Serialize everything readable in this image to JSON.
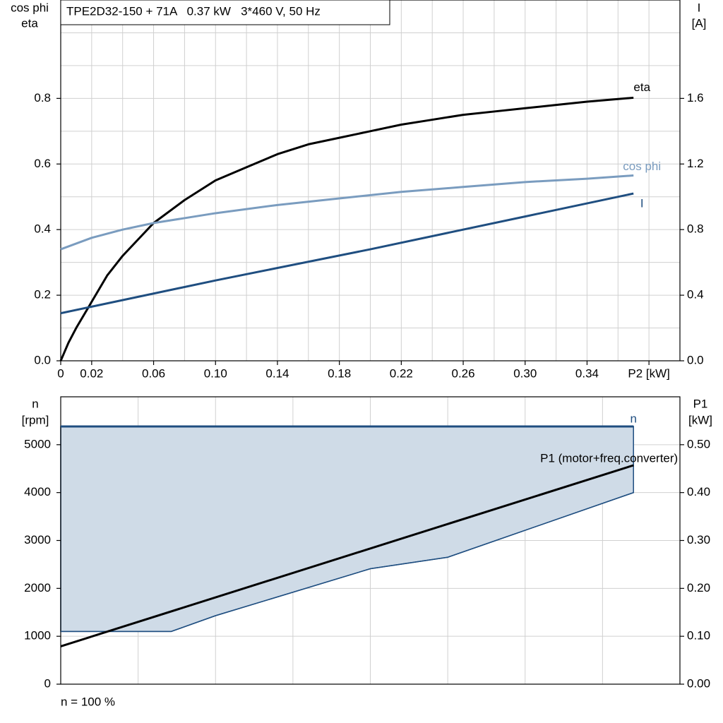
{
  "chart_data": [
    {
      "type": "line",
      "title": "TPE2D32-150 + 71A   0.37 kW   3*460 V, 50 Hz",
      "ylabel": [
        "cos phi",
        "eta"
      ],
      "y2label": [
        "I",
        "[A]"
      ],
      "xlim": [
        0,
        0.4
      ],
      "xticks": [
        0,
        0.02,
        0.06,
        {
          "value": 0.1,
          "label": "0.10"
        },
        0.14,
        0.18,
        0.22,
        0.26,
        {
          "value": 0.3,
          "label": "0.30"
        },
        0.34,
        {
          "value": 0.38,
          "label": "P2 [kW]"
        }
      ],
      "xgrid": [
        0.02,
        0.04,
        0.06,
        0.08,
        0.1,
        0.12,
        0.14,
        0.16,
        0.18,
        0.2,
        0.22,
        0.24,
        0.26,
        0.28,
        0.3,
        0.32,
        0.34,
        0.36,
        0.38
      ],
      "ylim": [
        0,
        1.1
      ],
      "yticks": [
        {
          "value": 0,
          "label": "0.0"
        },
        0.2,
        0.4,
        0.6,
        0.8
      ],
      "ygrid": [
        0.1,
        0.2,
        0.3,
        0.4,
        0.5,
        0.6,
        0.7,
        0.8,
        0.9,
        1.0
      ],
      "y2lim": [
        0,
        2.2
      ],
      "y2ticks": [
        {
          "value": 0,
          "label": "0.0"
        },
        0.4,
        0.8,
        1.2,
        1.6
      ],
      "series": [
        {
          "name": "eta",
          "color": "#000000",
          "x": [
            0,
            0.005,
            0.01,
            0.02,
            0.03,
            0.04,
            0.06,
            0.08,
            0.1,
            0.12,
            0.14,
            0.16,
            0.18,
            0.2,
            0.22,
            0.24,
            0.26,
            0.28,
            0.3,
            0.32,
            0.34,
            0.37
          ],
          "values": [
            0,
            0.055,
            0.1,
            0.18,
            0.26,
            0.32,
            0.42,
            0.49,
            0.55,
            0.59,
            0.63,
            0.66,
            0.68,
            0.7,
            0.72,
            0.735,
            0.75,
            0.76,
            0.77,
            0.78,
            0.79,
            0.802
          ]
        },
        {
          "name": "cos phi",
          "color": "#7a9cbf",
          "x": [
            0,
            0.02,
            0.04,
            0.06,
            0.08,
            0.1,
            0.14,
            0.18,
            0.22,
            0.26,
            0.3,
            0.34,
            0.37
          ],
          "values": [
            0.34,
            0.375,
            0.4,
            0.42,
            0.435,
            0.45,
            0.475,
            0.495,
            0.515,
            0.53,
            0.545,
            0.555,
            0.565
          ]
        },
        {
          "name": "I",
          "color": "#1f4e80",
          "axis": "y2",
          "x": [
            0,
            0.1,
            0.2,
            0.3,
            0.37
          ],
          "values": [
            0.29,
            0.49,
            0.68,
            0.88,
            1.02
          ]
        }
      ]
    },
    {
      "type": "line",
      "ylabel": [
        "n",
        "[rpm]"
      ],
      "y2label": [
        "P1",
        "[kW]"
      ],
      "note": "n = 100 %",
      "xlim": [
        0,
        0.4
      ],
      "xgrid": [
        0.05,
        0.1,
        0.15,
        0.2,
        0.25,
        0.3,
        0.35
      ],
      "ylim": [
        0,
        6000
      ],
      "yticks": [
        0,
        1000,
        2000,
        3000,
        4000,
        5000
      ],
      "ygrid": [
        1000,
        2000,
        3000,
        4000,
        5000
      ],
      "y2lim": [
        0,
        0.6
      ],
      "y2ticks": [
        {
          "value": 0,
          "label": "0.00"
        },
        {
          "value": 0.1,
          "label": "0.10"
        },
        {
          "value": 0.2,
          "label": "0.20"
        },
        {
          "value": 0.3,
          "label": "0.30"
        },
        {
          "value": 0.4,
          "label": "0.40"
        },
        {
          "value": 0.5,
          "label": "0.50"
        }
      ],
      "band": {
        "color": "#cfdbe7",
        "x": [
          0,
          0.0714,
          0.1,
          0.2,
          0.25,
          0.37
        ],
        "values": [
          1100,
          1100,
          1430,
          2410,
          2650,
          4000
        ]
      },
      "series": [
        {
          "name": "n",
          "color": "#1f4e80",
          "x": [
            0,
            0.37
          ],
          "values": [
            5380,
            5380
          ]
        },
        {
          "name": "P1 (motor+freq.converter)",
          "color": "#000000",
          "axis": "y2",
          "x": [
            0,
            0.37
          ],
          "values": [
            0.079,
            0.457
          ]
        }
      ]
    }
  ]
}
